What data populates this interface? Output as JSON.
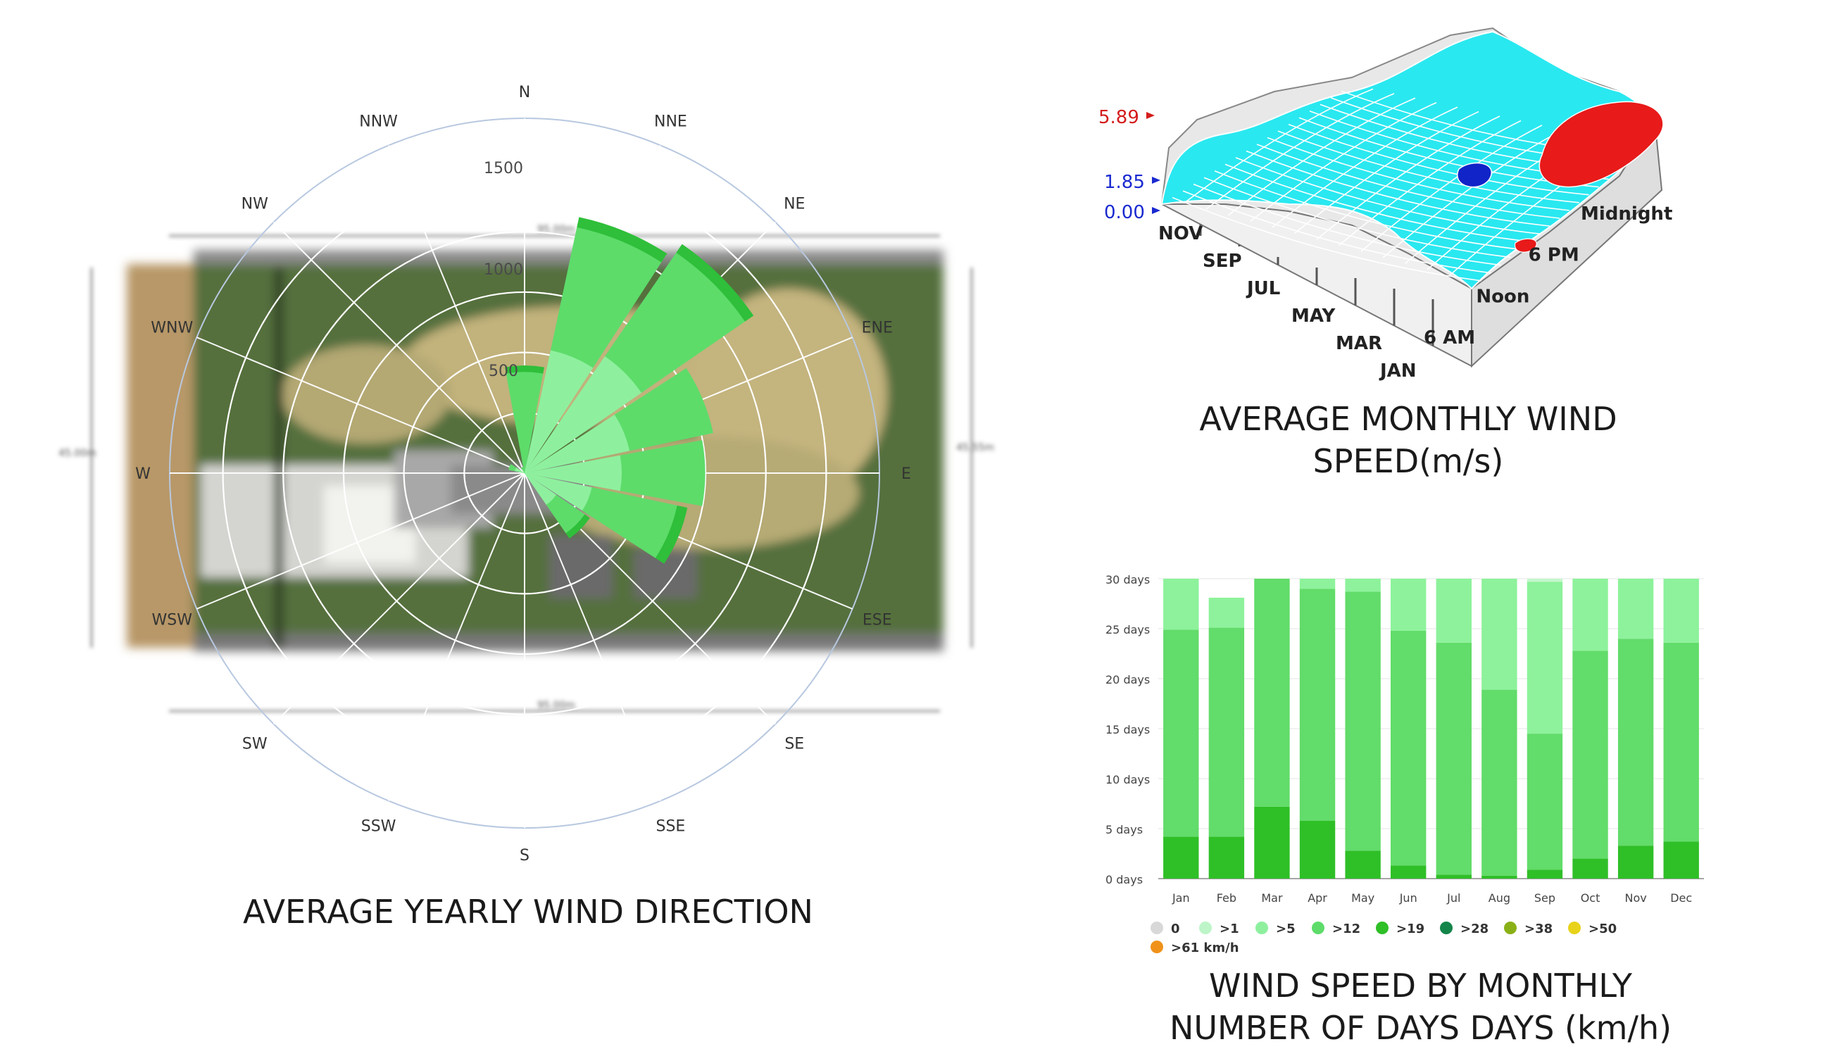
{
  "chart_data": [
    {
      "type": "polar-bar",
      "title": "AVERAGE YEARLY WIND DIRECTION",
      "directions": [
        "N",
        "NNE",
        "NE",
        "ENE",
        "E",
        "ESE",
        "SE",
        "SSE",
        "S",
        "SSW",
        "SW",
        "WSW",
        "W",
        "WNW",
        "NW",
        "NNW"
      ],
      "radial_ticks": [
        "500",
        "1000",
        "1500"
      ],
      "rlim": [
        0,
        1750
      ],
      "grid": true,
      "bar_colors": {
        "light": "#8ef09e",
        "mid": "#5ddc6a",
        "dark": "#2fbf3a"
      },
      "series": [
        {
          "name": "",
          "values": [
            0,
            280,
            180,
            130,
            90,
            60,
            40,
            0,
            0,
            0,
            0,
            0,
            0,
            30,
            0,
            0
          ]
        },
        {
          "name": "",
          "values": [
            0,
            340,
            520,
            400,
            390,
            280,
            150,
            0,
            0,
            0,
            0,
            0,
            0,
            20,
            0,
            0
          ]
        },
        {
          "name": "",
          "values": [
            500,
            620,
            620,
            420,
            410,
            430,
            170,
            0,
            0,
            0,
            0,
            0,
            0,
            30,
            0,
            30
          ]
        },
        {
          "name": "",
          "values": [
            30,
            50,
            50,
            0,
            0,
            50,
            30,
            0,
            0,
            0,
            0,
            0,
            0,
            0,
            0,
            0
          ]
        }
      ],
      "background_dimensions": [
        "95.00m",
        "45.00m",
        "45.55m",
        "95.00m"
      ]
    },
    {
      "type": "surface3d",
      "title_lines": [
        "AVERAGE MONTHLY WIND",
        "SPEED(m/s)"
      ],
      "z_labels": [
        {
          "text": "5.89",
          "color": "#d41c1c"
        },
        {
          "text": "1.85",
          "color": "#1a2ad0"
        },
        {
          "text": "0.00",
          "color": "#1a2ad0"
        }
      ],
      "month_axis": [
        "NOV",
        "SEP",
        "JUL",
        "MAY",
        "MAR",
        "JAN"
      ],
      "hour_axis": [
        "Midnight",
        "6 PM",
        "Noon",
        "6 AM"
      ],
      "colors": {
        "surface": "#2ae8f0",
        "high": "#e81a1a",
        "low": "#1024c8",
        "side": "#e6e6e6"
      }
    },
    {
      "type": "bar",
      "stacked": true,
      "title_lines": [
        "WIND SPEED BY MONTHLY",
        "NUMBER OF DAYS DAYS (km/h)"
      ],
      "categories": [
        "Jan",
        "Feb",
        "Mar",
        "Apr",
        "May",
        "Jun",
        "Jul",
        "Aug",
        "Sep",
        "Oct",
        "Nov",
        "Dec"
      ],
      "y_ticks": [
        "30 days",
        "25 days",
        "20 days",
        "15 days",
        "10 days",
        "5 days",
        "0 days"
      ],
      "ylim": [
        0,
        30
      ],
      "series": [
        {
          "name": ">19",
          "color": "#2fbf27",
          "values": [
            4.2,
            4.2,
            7.2,
            5.8,
            2.8,
            1.3,
            0.4,
            0.3,
            0.9,
            2.0,
            3.3,
            3.7
          ]
        },
        {
          "name": ">12",
          "color": "#62dc6a",
          "values": [
            20.7,
            20.9,
            22.8,
            23.2,
            25.9,
            23.5,
            23.2,
            18.6,
            13.6,
            20.8,
            20.7,
            19.9
          ]
        },
        {
          "name": ">5",
          "color": "#8df29b",
          "values": [
            5.1,
            3.0,
            0,
            1.0,
            1.3,
            5.2,
            6.4,
            11.1,
            15.2,
            7.2,
            6.0,
            6.4
          ]
        },
        {
          "name": ">1",
          "color": "#c4f7cc",
          "values": [
            0,
            0,
            0,
            0,
            0,
            0,
            0,
            0,
            0.3,
            0,
            0,
            0
          ]
        }
      ],
      "legend": [
        {
          "label": "0",
          "color": "#d8d8d8"
        },
        {
          "label": ">1",
          "color": "#bdf5c9"
        },
        {
          "label": ">5",
          "color": "#8ef09e"
        },
        {
          "label": ">12",
          "color": "#5ddc6a"
        },
        {
          "label": ">19",
          "color": "#2fbf27"
        },
        {
          "label": ">28",
          "color": "#14854a"
        },
        {
          "label": ">38",
          "color": "#8ab018"
        },
        {
          "label": ">50",
          "color": "#e8d21a"
        },
        {
          "label": ">61 km/h",
          "color": "#f0921a"
        }
      ]
    }
  ]
}
